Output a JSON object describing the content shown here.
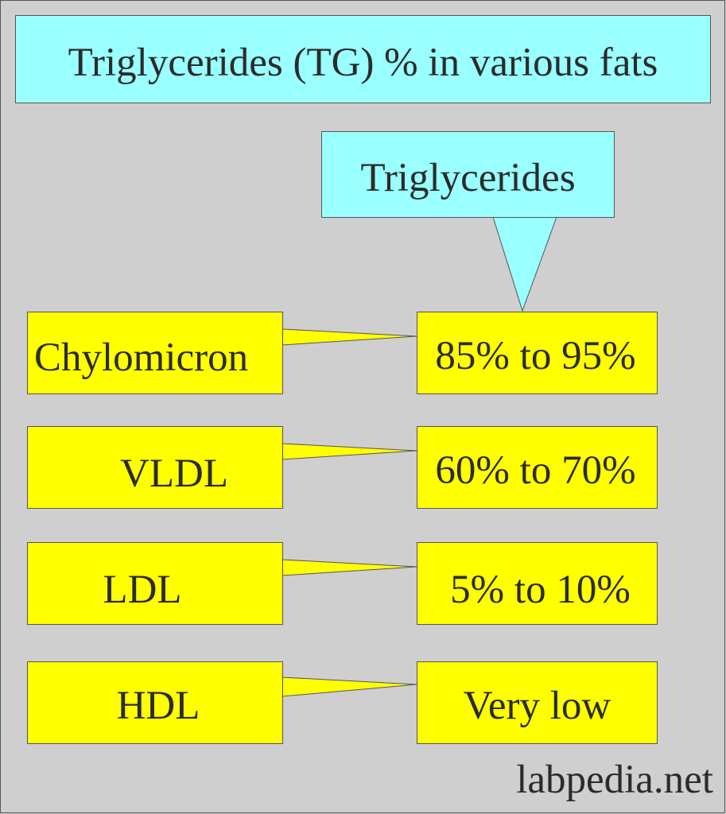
{
  "title": "Triglycerides (TG) % in various fats",
  "header_label": "Triglycerides",
  "rows": [
    {
      "label": "Chylomicron",
      "value": "85% to 95%"
    },
    {
      "label": "VLDL",
      "value": "60% to 70%"
    },
    {
      "label": "LDL",
      "value": "5% to 10%"
    },
    {
      "label": "HDL",
      "value": "Very low"
    }
  ],
  "watermark": "labpedia.net",
  "colors": {
    "background": "#cfcfcf",
    "callout_cyan": "#99ffff",
    "box_yellow": "#ffff00",
    "text": "#2b2b2b"
  }
}
